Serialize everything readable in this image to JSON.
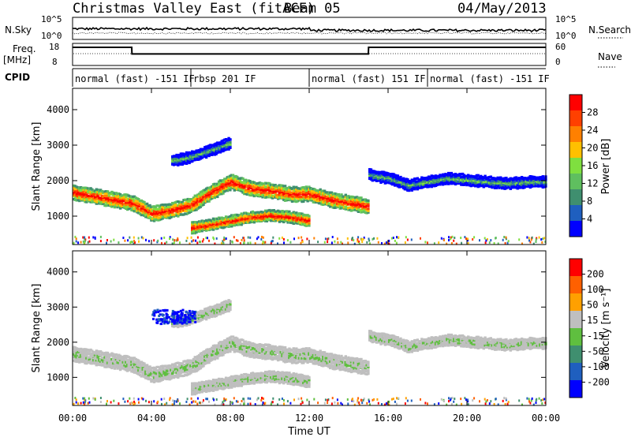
{
  "header": {
    "site": "Christmas Valley East (fitACF)",
    "beam": "Beam 05",
    "date": "04/May/2013"
  },
  "strip_labels": {
    "nsky": "N.Sky",
    "nsky_ticks": [
      "10^5",
      "10^0"
    ],
    "nsearch": "N.Search",
    "nsearch_ticks": [
      "10^5",
      "10^0"
    ],
    "freq": "Freq.",
    "freq_unit": "[MHz]",
    "freq_ticks": [
      "18",
      "8"
    ],
    "nave": "Nave",
    "nave_ticks": [
      "60",
      "0"
    ],
    "cpid": "CPID"
  },
  "cpid_segments": [
    {
      "label": "normal (fast) -151 IF",
      "start_hour": 0
    },
    {
      "label": "rbsp 201 IF",
      "start_hour": 6
    },
    {
      "label": "normal (fast) 151 IF",
      "start_hour": 12
    },
    {
      "label": "normal (fast) -151 IF",
      "start_hour": 18
    }
  ],
  "x_axis": {
    "label": "Time UT",
    "ticks": [
      "00:00",
      "04:00",
      "08:00",
      "12:00",
      "16:00",
      "20:00",
      "00:00"
    ]
  },
  "power_panel": {
    "ylabel": "Slant Range [km]",
    "yticks": [
      "4000",
      "3000",
      "2000",
      "1000"
    ],
    "colorbar_label": "Power [dB]",
    "colorbar_ticks": [
      "28",
      "24",
      "20",
      "16",
      "12",
      "8",
      "4"
    ],
    "colors": [
      "#0000ff",
      "#1f5fbf",
      "#3f8f6f",
      "#5fbf5f",
      "#7fdf3f",
      "#ffc000",
      "#ff8000",
      "#ff4000",
      "#ff0000"
    ]
  },
  "velocity_panel": {
    "ylabel": "Slant Range [km]",
    "yticks": [
      "4000",
      "3000",
      "2000",
      "1000"
    ],
    "colorbar_label": "Velocity [m s⁻¹]",
    "colorbar_ticks": [
      "200",
      "100",
      "50",
      "15",
      "-15",
      "-50",
      "-100",
      "-200"
    ],
    "colors": [
      "#0000ff",
      "#1f5fbf",
      "#3f8f6f",
      "#5fbf3f",
      "#bfbfbf",
      "#ffa000",
      "#ff6000",
      "#ff0000"
    ]
  },
  "chart_data": {
    "type": "heatmap",
    "xlabel": "Time UT",
    "ylabel": "Slant Range [km]",
    "x_range_hours": [
      0,
      24
    ],
    "y_range_km": [
      200,
      4600
    ],
    "power_db_range": [
      0,
      30
    ],
    "velocity_range": [
      -250,
      250
    ],
    "frequency_series_mhz": {
      "hours": [
        0,
        3,
        3.01,
        15,
        15.01,
        22,
        22.1,
        24
      ],
      "values": [
        16.2,
        16.2,
        13.2,
        13.2,
        16.2,
        16.2,
        16.2,
        16.2
      ]
    },
    "scatter_features": [
      {
        "name": "main band (power)",
        "hours": [
          0,
          1,
          2,
          3,
          4,
          5,
          6,
          7,
          8,
          9,
          10,
          11,
          12,
          13,
          14,
          15
        ],
        "range_km": [
          1700,
          1600,
          1500,
          1400,
          1100,
          1200,
          1350,
          1700,
          2000,
          1800,
          1750,
          1650,
          1650,
          1500,
          1400,
          1300
        ]
      },
      {
        "name": "afternoon band",
        "hours": [
          15,
          16,
          17,
          18,
          19,
          20,
          21,
          22,
          23,
          24
        ],
        "range_km": [
          2200,
          2100,
          1900,
          2000,
          2100,
          2050,
          2000,
          1950,
          2000,
          2000
        ]
      },
      {
        "name": "lower patch",
        "hours": [
          6,
          7,
          8,
          9,
          10,
          11,
          12
        ],
        "range_km": [
          700,
          800,
          900,
          1000,
          1050,
          1000,
          900
        ]
      },
      {
        "name": "upper patch",
        "hours": [
          5,
          6,
          7,
          8
        ],
        "range_km": [
          2600,
          2700,
          2900,
          3100
        ]
      }
    ]
  }
}
